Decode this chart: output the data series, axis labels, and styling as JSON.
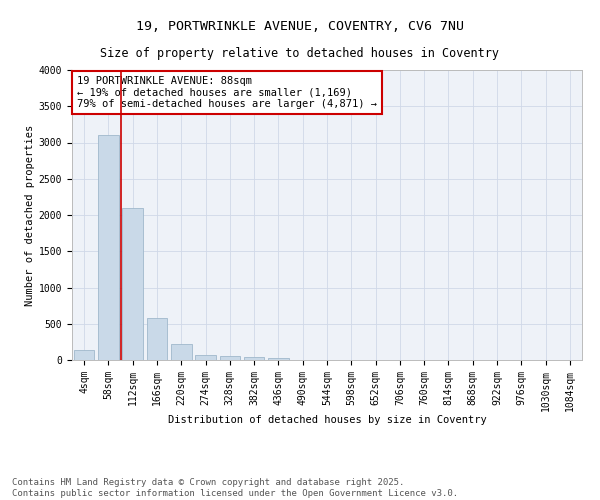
{
  "title_line1": "19, PORTWRINKLE AVENUE, COVENTRY, CV6 7NU",
  "title_line2": "Size of property relative to detached houses in Coventry",
  "xlabel": "Distribution of detached houses by size in Coventry",
  "ylabel": "Number of detached properties",
  "bar_labels": [
    "4sqm",
    "58sqm",
    "112sqm",
    "166sqm",
    "220sqm",
    "274sqm",
    "328sqm",
    "382sqm",
    "436sqm",
    "490sqm",
    "544sqm",
    "598sqm",
    "652sqm",
    "706sqm",
    "760sqm",
    "814sqm",
    "868sqm",
    "922sqm",
    "976sqm",
    "1030sqm",
    "1084sqm"
  ],
  "bar_values": [
    140,
    3100,
    2100,
    580,
    220,
    75,
    50,
    45,
    30,
    0,
    0,
    0,
    0,
    0,
    0,
    0,
    0,
    0,
    0,
    0,
    0
  ],
  "bar_color": "#c9d9e8",
  "bar_edge_color": "#a0b8cc",
  "vline_x": 1.5,
  "vline_color": "#cc0000",
  "annotation_text": "19 PORTWRINKLE AVENUE: 88sqm\n← 19% of detached houses are smaller (1,169)\n79% of semi-detached houses are larger (4,871) →",
  "annotation_box_color": "#ffffff",
  "annotation_box_edge": "#cc0000",
  "annotation_fontsize": 7.5,
  "ylim": [
    0,
    4000
  ],
  "yticks": [
    0,
    500,
    1000,
    1500,
    2000,
    2500,
    3000,
    3500,
    4000
  ],
  "grid_color": "#d0d8e8",
  "background_color": "#eef2f8",
  "footer_line1": "Contains HM Land Registry data © Crown copyright and database right 2025.",
  "footer_line2": "Contains public sector information licensed under the Open Government Licence v3.0.",
  "title_fontsize": 9.5,
  "subtitle_fontsize": 8.5,
  "axis_label_fontsize": 7.5,
  "tick_fontsize": 7,
  "footer_fontsize": 6.5
}
